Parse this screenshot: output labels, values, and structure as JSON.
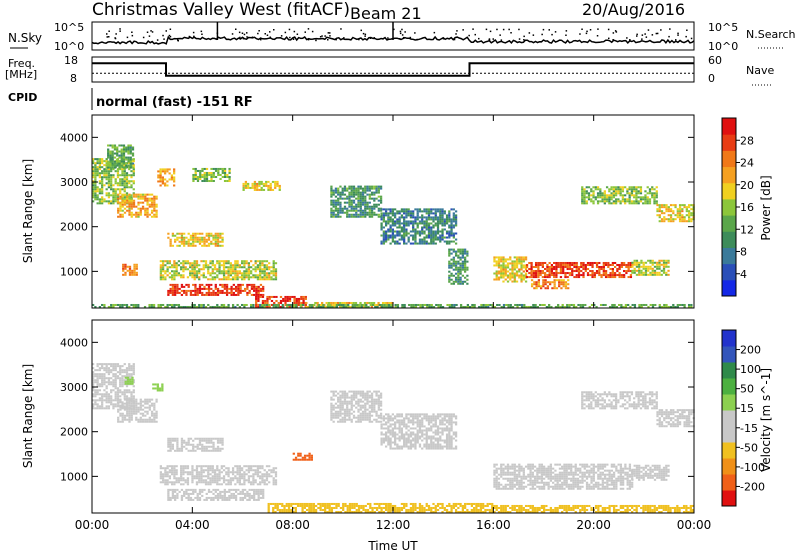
{
  "header": {
    "title": "Christmas Valley West (fitACF)",
    "beam": "Beam 21",
    "date": "20/Aug/2016"
  },
  "top_panels": {
    "nsky_label": "N.Sky",
    "nsky_ticks": [
      "10^5",
      "10^0"
    ],
    "nsearch_label": "N.Search",
    "nsearch_ticks": [
      "10^5",
      "10^0"
    ],
    "freq_label_1": "Freq.",
    "freq_label_2": "[MHz]",
    "freq_ticks": [
      "18",
      "8"
    ],
    "nave_label": "Nave",
    "nave_ticks": [
      "60",
      "0"
    ],
    "cpid_label": "CPID",
    "cpid_text": "normal (fast) -151 RF"
  },
  "colors": {
    "power_scale": [
      "#1428e6",
      "#2a4fb8",
      "#3a7a9a",
      "#3d8c5a",
      "#5aa64a",
      "#8cc63a",
      "#f0d020",
      "#f5a020",
      "#f07818",
      "#e83c14",
      "#e01010"
    ],
    "velocity_scale": [
      "#2233cc",
      "#3355bb",
      "#2f8a4a",
      "#4cb040",
      "#8cd050",
      "#c8c8c8",
      "#c8c8c8",
      "#f0c020",
      "#f09018",
      "#f06018",
      "#e01010"
    ]
  },
  "chart_data": [
    {
      "type": "heatmap",
      "name": "power",
      "ylabel": "Slant Range [km]",
      "xlabel": "",
      "x_ticks": [
        "00:00",
        "04:00",
        "08:00",
        "12:00",
        "16:00",
        "20:00",
        "00:00"
      ],
      "xlim_hours": [
        0,
        24
      ],
      "ylim_km": [
        180,
        4500
      ],
      "y_ticks": [
        1000,
        2000,
        3000,
        4000
      ],
      "colorbar_label": "Power [dB]",
      "colorbar_ticks": [
        4,
        8,
        12,
        16,
        20,
        24,
        28
      ],
      "colorbar_range": [
        0,
        30
      ],
      "regions": [
        {
          "t0": 0.0,
          "t1": 1.7,
          "r0": 2500,
          "r1": 3500,
          "value": 14
        },
        {
          "t0": 1.0,
          "t1": 2.6,
          "r0": 2200,
          "r1": 2700,
          "value": 20
        },
        {
          "t0": 0.6,
          "t1": 1.6,
          "r0": 3300,
          "r1": 3800,
          "value": 12
        },
        {
          "t0": 2.6,
          "t1": 3.3,
          "r0": 2900,
          "r1": 3300,
          "value": 20
        },
        {
          "t0": 3.0,
          "t1": 5.2,
          "r0": 1550,
          "r1": 1850,
          "value": 18
        },
        {
          "t0": 1.2,
          "t1": 1.8,
          "r0": 900,
          "r1": 1150,
          "value": 22
        },
        {
          "t0": 2.7,
          "t1": 7.3,
          "r0": 800,
          "r1": 1250,
          "value": 16
        },
        {
          "t0": 3.0,
          "t1": 6.8,
          "r0": 450,
          "r1": 700,
          "value": 27
        },
        {
          "t0": 6.5,
          "t1": 8.5,
          "r0": 180,
          "r1": 420,
          "value": 26
        },
        {
          "t0": 8.5,
          "t1": 12.0,
          "r0": 180,
          "r1": 300,
          "value": 18
        },
        {
          "t0": 6.0,
          "t1": 7.5,
          "r0": 2800,
          "r1": 3000,
          "value": 18
        },
        {
          "t0": 4.0,
          "t1": 5.5,
          "r0": 3000,
          "r1": 3300,
          "value": 14
        },
        {
          "t0": 9.5,
          "t1": 11.5,
          "r0": 2200,
          "r1": 2900,
          "value": 10
        },
        {
          "t0": 11.5,
          "t1": 14.5,
          "r0": 1600,
          "r1": 2400,
          "value": 8
        },
        {
          "t0": 14.2,
          "t1": 15.0,
          "r0": 700,
          "r1": 1500,
          "value": 10
        },
        {
          "t0": 16.0,
          "t1": 17.3,
          "r0": 750,
          "r1": 1300,
          "value": 18
        },
        {
          "t0": 17.3,
          "t1": 21.5,
          "r0": 850,
          "r1": 1200,
          "value": 26
        },
        {
          "t0": 17.5,
          "t1": 19.0,
          "r0": 600,
          "r1": 800,
          "value": 22
        },
        {
          "t0": 21.5,
          "t1": 23.0,
          "r0": 900,
          "r1": 1250,
          "value": 16
        },
        {
          "t0": 19.5,
          "t1": 22.5,
          "r0": 2500,
          "r1": 2900,
          "value": 14
        },
        {
          "t0": 22.5,
          "t1": 24.0,
          "r0": 2100,
          "r1": 2500,
          "value": 18
        },
        {
          "t0": 0.0,
          "t1": 24.0,
          "r0": 180,
          "r1": 260,
          "value": 12
        }
      ]
    },
    {
      "type": "heatmap",
      "name": "velocity",
      "ylabel": "Slant Range [km]",
      "xlabel": "Time UT",
      "x_ticks": [
        "00:00",
        "04:00",
        "08:00",
        "12:00",
        "16:00",
        "20:00",
        "00:00"
      ],
      "xlim_hours": [
        0,
        24
      ],
      "ylim_km": [
        180,
        4500
      ],
      "y_ticks": [
        1000,
        2000,
        3000,
        4000
      ],
      "colorbar_label": "Velocity [m s^-1]",
      "colorbar_ticks": [
        -200,
        -100,
        -50,
        -15,
        15,
        50,
        100,
        200
      ],
      "colorbar_range": [
        -250,
        250
      ],
      "regions": [
        {
          "t0": 0.0,
          "t1": 1.7,
          "r0": 2500,
          "r1": 3500,
          "value": 0
        },
        {
          "t0": 1.0,
          "t1": 2.6,
          "r0": 2200,
          "r1": 2700,
          "value": 0
        },
        {
          "t0": 3.0,
          "t1": 5.2,
          "r0": 1550,
          "r1": 1850,
          "value": 0
        },
        {
          "t0": 2.7,
          "t1": 7.3,
          "r0": 800,
          "r1": 1250,
          "value": 0
        },
        {
          "t0": 3.0,
          "t1": 6.8,
          "r0": 450,
          "r1": 700,
          "value": 0
        },
        {
          "t0": 7.0,
          "t1": 16.0,
          "r0": 180,
          "r1": 380,
          "value": -40
        },
        {
          "t0": 16.0,
          "t1": 24.0,
          "r0": 180,
          "r1": 320,
          "value": -30
        },
        {
          "t0": 9.5,
          "t1": 11.5,
          "r0": 2200,
          "r1": 2900,
          "value": 30
        },
        {
          "t0": 11.5,
          "t1": 14.5,
          "r0": 1600,
          "r1": 2400,
          "value": 0
        },
        {
          "t0": 16.0,
          "t1": 21.5,
          "r0": 700,
          "r1": 1250,
          "value": 0
        },
        {
          "t0": 21.5,
          "t1": 23.0,
          "r0": 900,
          "r1": 1250,
          "value": 0
        },
        {
          "t0": 19.5,
          "t1": 22.5,
          "r0": 2500,
          "r1": 2900,
          "value": 0
        },
        {
          "t0": 22.5,
          "t1": 24.0,
          "r0": 2100,
          "r1": 2500,
          "value": 0
        },
        {
          "t0": 1.3,
          "t1": 1.6,
          "r0": 3050,
          "r1": 3200,
          "value": 60
        },
        {
          "t0": 2.4,
          "t1": 2.8,
          "r0": 2900,
          "r1": 3050,
          "value": 60
        },
        {
          "t0": 8.0,
          "t1": 8.8,
          "r0": 1350,
          "r1": 1500,
          "value": -120
        }
      ]
    }
  ],
  "frequency_trace": {
    "segments": [
      {
        "t0": 0.0,
        "t1": 2.95,
        "mhz": 15.5
      },
      {
        "t0": 2.95,
        "t1": 15.05,
        "mhz": 10.5
      },
      {
        "t0": 15.05,
        "t1": 24.0,
        "mhz": 15.5
      }
    ],
    "nave_dotted_level": 21
  }
}
